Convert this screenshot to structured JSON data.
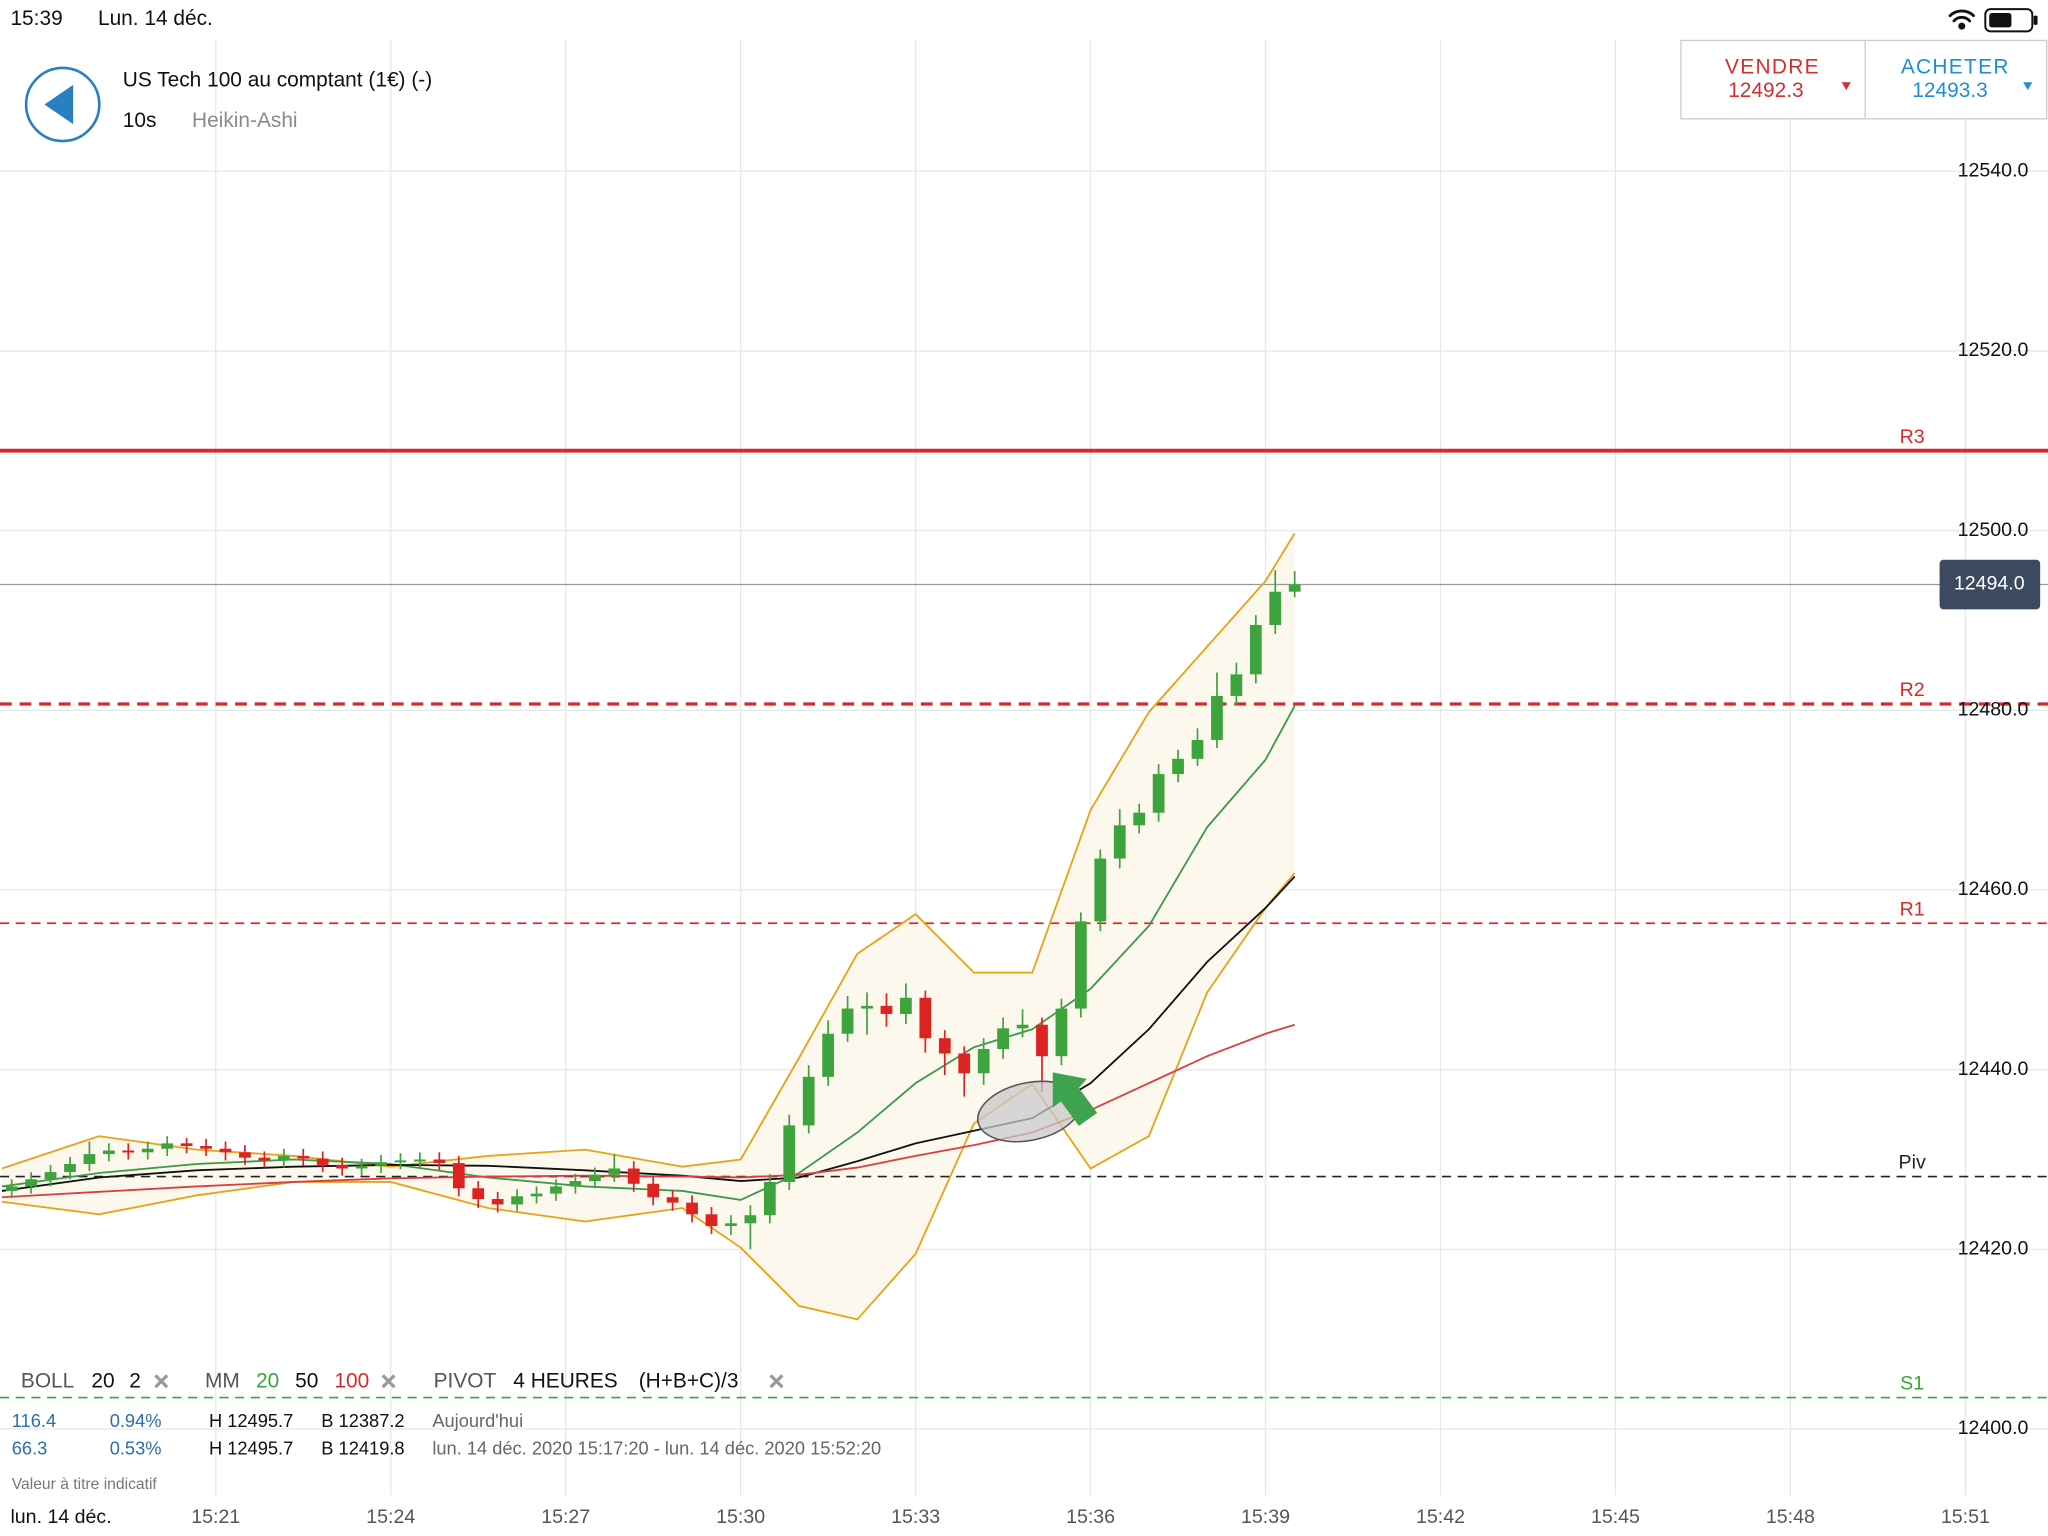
{
  "status_bar": {
    "time": "15:39",
    "date": "Lun. 14 déc."
  },
  "header": {
    "title": "US Tech 100 au comptant (1€) (-)",
    "interval": "10s",
    "chart_style": "Heikin-Ashi"
  },
  "quote": {
    "sell_label": "VENDRE",
    "sell_price": 12492.3,
    "buy_label": "ACHETER",
    "buy_price": 12493.3
  },
  "indicators": {
    "boll": {
      "label": "BOLL",
      "period": 20,
      "deviation": 2
    },
    "mm": {
      "label": "MM",
      "p1": 20,
      "p2": 50,
      "p3": 100
    },
    "pivot": {
      "label": "PIVOT",
      "period": "4 HEURES",
      "formula": "(H+B+C)/3"
    }
  },
  "stats": [
    {
      "a": "116.4",
      "b": "0.94%",
      "h": "H 12495.7",
      "l": "B 12387.2",
      "range": "Aujourd'hui"
    },
    {
      "a": "66.3",
      "b": "0.53%",
      "h": "H 12495.7",
      "l": "B 12419.8",
      "range": "lun. 14 déc. 2020 15:17:20 - lun. 14 déc. 2020 15:52:20"
    }
  ],
  "disclaimer": "Valeur à titre indicatif",
  "date_label": "lun. 14 déc.",
  "chart_data": {
    "type": "candlestick",
    "up_color": "#3da33d",
    "down_color": "#dd2222",
    "x": [
      1050,
      1070,
      1090,
      1110,
      1130,
      1150,
      1170,
      1190,
      1210,
      1230,
      1250,
      1270,
      1290,
      1310,
      1330,
      1350,
      1370,
      1390,
      1410,
      1430,
      1450,
      1470,
      1490,
      1510,
      1530,
      1550,
      1570,
      1590,
      1610,
      1630,
      1650,
      1670,
      1690,
      1710,
      1730,
      1750,
      1770,
      1790,
      1810,
      1830,
      1850,
      1870,
      1890,
      1910,
      1930,
      1950,
      1970,
      1990,
      2010,
      2030,
      2050,
      2070,
      2090,
      2110,
      2130,
      2150,
      2170,
      2190,
      2210,
      2230,
      2250,
      2270,
      2290,
      2310,
      2330,
      2350,
      2370
    ],
    "open": [
      12426.5,
      12427.0,
      12427.8,
      12428.6,
      12429.5,
      12430.6,
      12431.0,
      12430.8,
      12431.2,
      12431.8,
      12431.5,
      12431.2,
      12430.8,
      12430.2,
      12429.9,
      12430.4,
      12430.1,
      12429.4,
      12429.0,
      12429.3,
      12429.7,
      12429.9,
      12430.0,
      12429.6,
      12426.8,
      12425.6,
      12425.0,
      12425.9,
      12426.2,
      12427.0,
      12427.6,
      12428.3,
      12429.0,
      12427.3,
      12425.8,
      12425.2,
      12423.9,
      12422.6,
      12422.9,
      12423.8,
      12427.5,
      12433.8,
      12439.2,
      12444.0,
      12446.8,
      12447.1,
      12446.2,
      12448.0,
      12443.5,
      12441.8,
      12439.6,
      12442.3,
      12444.6,
      12445.0,
      12441.5,
      12446.8,
      12456.5,
      12463.5,
      12467.2,
      12468.6,
      12472.9,
      12474.6,
      12476.7,
      12481.6,
      12484.0,
      12489.5,
      12493.2
    ],
    "high": [
      12427.8,
      12428.6,
      12429.4,
      12430.3,
      12432.0,
      12431.8,
      12431.8,
      12432.0,
      12432.6,
      12432.4,
      12432.3,
      12432.0,
      12431.6,
      12430.9,
      12431.2,
      12431.2,
      12430.9,
      12430.2,
      12430.1,
      12430.5,
      12430.7,
      12430.8,
      12430.8,
      12430.4,
      12427.6,
      12426.4,
      12426.7,
      12427.0,
      12427.8,
      12428.4,
      12429.1,
      12430.6,
      12429.8,
      12428.1,
      12426.6,
      12426.0,
      12424.7,
      12423.8,
      12424.9,
      12428.4,
      12435.0,
      12440.5,
      12445.5,
      12448.2,
      12448.6,
      12448.5,
      12449.6,
      12448.8,
      12444.4,
      12442.6,
      12443.5,
      12445.8,
      12446.7,
      12445.8,
      12447.9,
      12457.5,
      12464.5,
      12469.0,
      12469.6,
      12474.0,
      12475.6,
      12478.0,
      12484.2,
      12485.3,
      12490.6,
      12495.6,
      12495.5
    ],
    "low": [
      12425.7,
      12426.2,
      12427.0,
      12427.8,
      12428.7,
      12429.8,
      12430.0,
      12430.0,
      12430.4,
      12430.7,
      12430.4,
      12429.9,
      12429.4,
      12429.1,
      12429.1,
      12429.3,
      12428.6,
      12428.2,
      12428.2,
      12428.5,
      12428.9,
      12429.1,
      12428.8,
      12425.9,
      12424.6,
      12424.1,
      12424.2,
      12425.1,
      12425.4,
      12426.2,
      12426.8,
      12427.5,
      12426.4,
      12424.9,
      12424.3,
      12423.0,
      12421.7,
      12421.6,
      12420.0,
      12422.9,
      12426.6,
      12432.9,
      12438.2,
      12443.1,
      12443.9,
      12444.8,
      12445.1,
      12441.9,
      12439.4,
      12437.0,
      12438.3,
      12441.2,
      12443.6,
      12437.5,
      12440.5,
      12445.8,
      12455.4,
      12462.4,
      12466.3,
      12467.6,
      12472.0,
      12473.8,
      12475.8,
      12480.6,
      12483.0,
      12488.5,
      12492.6
    ],
    "close": [
      12427.0,
      12427.8,
      12428.6,
      12429.5,
      12430.6,
      12431.0,
      12430.8,
      12431.2,
      12431.8,
      12431.5,
      12431.2,
      12430.8,
      12430.2,
      12429.9,
      12430.4,
      12430.1,
      12429.4,
      12429.0,
      12429.3,
      12429.7,
      12429.9,
      12430.0,
      12429.6,
      12426.8,
      12425.6,
      12425.0,
      12425.9,
      12426.2,
      12427.0,
      12427.6,
      12428.3,
      12429.0,
      12427.3,
      12425.8,
      12425.2,
      12423.9,
      12422.6,
      12422.9,
      12423.8,
      12427.5,
      12433.8,
      12439.2,
      12444.0,
      12446.8,
      12447.1,
      12446.2,
      12448.0,
      12443.5,
      12441.8,
      12439.6,
      12442.3,
      12444.6,
      12445.0,
      12441.5,
      12446.8,
      12456.5,
      12463.5,
      12467.2,
      12468.6,
      12472.9,
      12474.6,
      12476.7,
      12481.6,
      12484.0,
      12489.5,
      12493.2,
      12494.0
    ],
    "indicator_x": [
      1040,
      1140,
      1240,
      1340,
      1440,
      1540,
      1640,
      1740,
      1800,
      1860,
      1920,
      1980,
      2040,
      2100,
      2160,
      2220,
      2280,
      2340,
      2370
    ],
    "band_color": "#fdf8ee",
    "lines": [
      {
        "color": "#e8a317",
        "values": [
          12429.0,
          12432.6,
          12431.1,
          12430.4,
          12429.2,
          12430.4,
          12431.1,
          12429.2,
          12430.0,
          12441.3,
          12452.9,
          12457.3,
          12450.8,
          12450.8,
          12468.9,
          12479.8,
          12487.1,
          12494.4,
          12499.7
        ]
      },
      {
        "color": "#e8a317",
        "values": [
          12425.3,
          12423.9,
          12426.0,
          12427.5,
          12427.5,
          12424.6,
          12423.1,
          12424.6,
          12420.2,
          12413.7,
          12412.2,
          12419.5,
          12434.0,
          12438.4,
          12429.0,
          12432.6,
          12448.6,
          12458.0,
          12461.9
        ]
      },
      {
        "color": "#3e9a4a",
        "values": [
          12427.0,
          12428.5,
          12429.5,
          12430.0,
          12429.5,
          12428.0,
          12427.0,
          12426.5,
          12425.5,
          12428.5,
          12433.0,
          12438.5,
          12442.5,
          12444.5,
          12449.0,
          12456.0,
          12467.0,
          12474.5,
          12480.5
        ]
      },
      {
        "color": "#111111",
        "values": [
          12426.5,
          12428.0,
          12428.8,
          12429.2,
          12429.4,
          12429.3,
          12428.8,
          12428.2,
          12427.6,
          12428.0,
          12429.8,
          12431.8,
          12433.2,
          12434.6,
          12438.5,
          12444.5,
          12452.0,
          12458.0,
          12461.5
        ]
      },
      {
        "color": "#d84040",
        "values": [
          12425.8,
          12426.4,
          12427.0,
          12427.5,
          12427.9,
          12428.1,
          12428.2,
          12428.1,
          12428.0,
          12428.3,
          12429.1,
          12430.4,
          12431.6,
          12433.0,
          12435.5,
          12438.5,
          12441.5,
          12444.0,
          12445.0
        ]
      }
    ],
    "levels": [
      {
        "label": "R3",
        "value": 12508.9,
        "color": "#d62b2b",
        "style": "solid"
      },
      {
        "label": "R2",
        "value": 12480.7,
        "color": "#d62b2b",
        "style": "dashed"
      },
      {
        "label": "R1",
        "value": 12456.3,
        "color": "#d62b2b",
        "style": "dashed"
      },
      {
        "label": "Piv",
        "value": 12428.1,
        "color": "#222222",
        "style": "dashed"
      },
      {
        "label": "S1",
        "value": 12403.5,
        "color": "#3da33d",
        "style": "dashed"
      }
    ],
    "last_price": {
      "value": 12494.0,
      "label": "12494.0"
    },
    "xlim": [
      1038,
      3145
    ],
    "xticks": [
      {
        "value": 1260,
        "label": "15:21"
      },
      {
        "value": 1440,
        "label": "15:24"
      },
      {
        "value": 1620,
        "label": "15:27"
      },
      {
        "value": 1800,
        "label": "15:30"
      },
      {
        "value": 1980,
        "label": "15:33"
      },
      {
        "value": 2160,
        "label": "15:36"
      },
      {
        "value": 2340,
        "label": "15:39"
      },
      {
        "value": 2520,
        "label": "15:42"
      },
      {
        "value": 2700,
        "label": "15:45"
      },
      {
        "value": 2880,
        "label": "15:48"
      },
      {
        "value": 3060,
        "label": "15:51"
      }
    ],
    "ylim": [
      12392.6,
      12554.7
    ],
    "yticks": [
      {
        "value": 12400,
        "label": "12400.0"
      },
      {
        "value": 12420,
        "label": "12420.0"
      },
      {
        "value": 12440,
        "label": "12440.0"
      },
      {
        "value": 12460,
        "label": "12460.0"
      },
      {
        "value": 12480,
        "label": "12480.0"
      },
      {
        "value": 12500,
        "label": "12500.0"
      },
      {
        "value": 12520,
        "label": "12520.0"
      },
      {
        "value": 12540,
        "label": "12540.0"
      }
    ],
    "grid": true
  }
}
